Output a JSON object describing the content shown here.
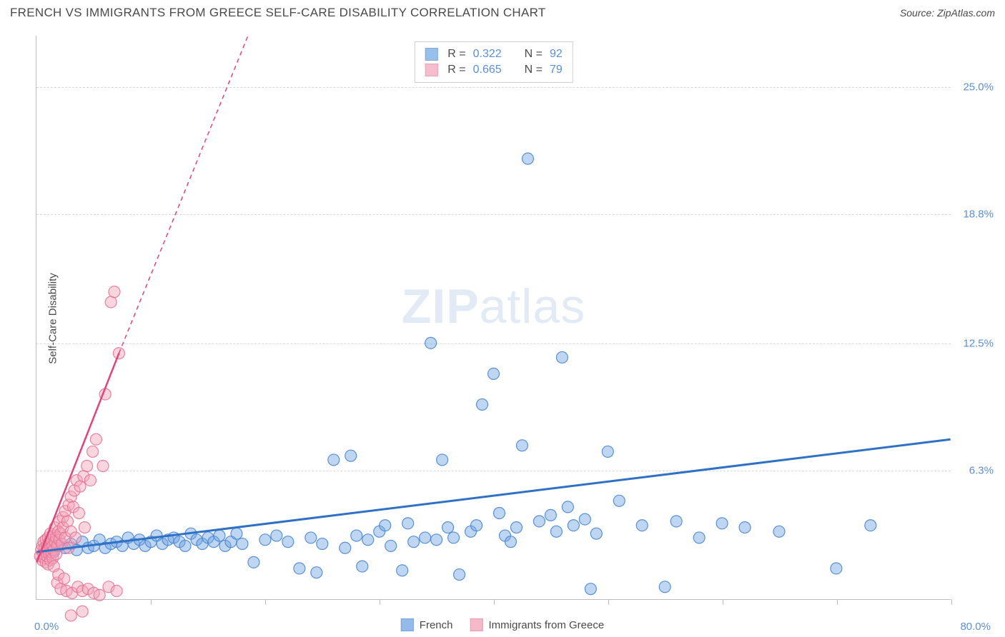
{
  "title": "FRENCH VS IMMIGRANTS FROM GREECE SELF-CARE DISABILITY CORRELATION CHART",
  "source": "Source: ZipAtlas.com",
  "watermark": {
    "zip": "ZIP",
    "atlas": "atlas"
  },
  "chart": {
    "type": "scatter",
    "background_color": "#ffffff",
    "grid_color": "#d9d9d9",
    "axis_color": "#bdbdbd",
    "label_color": "#4a4a4a",
    "tick_label_color": "#5b8fd6",
    "label_fontsize": 15,
    "title_fontsize": 17,
    "xlim": [
      0,
      80
    ],
    "ylim": [
      0,
      27.5
    ],
    "x_min_label": "0.0%",
    "x_max_label": "80.0%",
    "x_tick_positions": [
      10,
      20,
      30,
      40,
      50,
      60,
      70,
      80
    ],
    "y_gridlines": [
      6.3,
      12.5,
      18.8,
      25.0
    ],
    "y_tick_labels": [
      "6.3%",
      "12.5%",
      "18.8%",
      "25.0%"
    ],
    "y_axis_label": "Self-Care Disability",
    "marker_radius": 8,
    "marker_fill_opacity": 0.45,
    "marker_stroke_opacity": 0.9,
    "series": [
      {
        "id": "french",
        "label": "French",
        "color": "#6fa4e3",
        "stroke": "#4a86d2",
        "trend_color": "#2f71c6",
        "trend_width": 3,
        "trend_dash": "none",
        "R": "0.322",
        "N": "92",
        "trend": {
          "x1": 0,
          "y1": 2.3,
          "x2": 80,
          "y2": 7.8
        },
        "points": [
          [
            1,
            2.4
          ],
          [
            1.5,
            2.3
          ],
          [
            2,
            2.6
          ],
          [
            2.5,
            2.5
          ],
          [
            3,
            2.7
          ],
          [
            3.5,
            2.4
          ],
          [
            4,
            2.8
          ],
          [
            4.5,
            2.5
          ],
          [
            5,
            2.6
          ],
          [
            5.5,
            2.9
          ],
          [
            6,
            2.5
          ],
          [
            6.5,
            2.7
          ],
          [
            7,
            2.8
          ],
          [
            7.5,
            2.6
          ],
          [
            8,
            3.0
          ],
          [
            8.5,
            2.7
          ],
          [
            9,
            2.9
          ],
          [
            9.5,
            2.6
          ],
          [
            10,
            2.8
          ],
          [
            10.5,
            3.1
          ],
          [
            11,
            2.7
          ],
          [
            11.5,
            2.9
          ],
          [
            12,
            3.0
          ],
          [
            12.5,
            2.8
          ],
          [
            13,
            2.6
          ],
          [
            13.5,
            3.2
          ],
          [
            14,
            2.9
          ],
          [
            14.5,
            2.7
          ],
          [
            15,
            3.0
          ],
          [
            15.5,
            2.8
          ],
          [
            16,
            3.1
          ],
          [
            16.5,
            2.6
          ],
          [
            17,
            2.8
          ],
          [
            17.5,
            3.2
          ],
          [
            18,
            2.7
          ],
          [
            19,
            1.8
          ],
          [
            20,
            2.9
          ],
          [
            21,
            3.1
          ],
          [
            22,
            2.8
          ],
          [
            23,
            1.5
          ],
          [
            24,
            3.0
          ],
          [
            24.5,
            1.3
          ],
          [
            25,
            2.7
          ],
          [
            26,
            6.8
          ],
          [
            27,
            2.5
          ],
          [
            27.5,
            7.0
          ],
          [
            28,
            3.1
          ],
          [
            28.5,
            1.6
          ],
          [
            29,
            2.9
          ],
          [
            30,
            3.3
          ],
          [
            30.5,
            3.6
          ],
          [
            31,
            2.6
          ],
          [
            32,
            1.4
          ],
          [
            32.5,
            3.7
          ],
          [
            33,
            2.8
          ],
          [
            34,
            3.0
          ],
          [
            34.5,
            12.5
          ],
          [
            35,
            2.9
          ],
          [
            35.5,
            6.8
          ],
          [
            36,
            3.5
          ],
          [
            36.5,
            3.0
          ],
          [
            37,
            1.2
          ],
          [
            38,
            3.3
          ],
          [
            38.5,
            3.6
          ],
          [
            39,
            9.5
          ],
          [
            40,
            11.0
          ],
          [
            40.5,
            4.2
          ],
          [
            41,
            3.1
          ],
          [
            41.5,
            2.8
          ],
          [
            42,
            3.5
          ],
          [
            42.5,
            7.5
          ],
          [
            43,
            21.5
          ],
          [
            44,
            3.8
          ],
          [
            45,
            4.1
          ],
          [
            45.5,
            3.3
          ],
          [
            46,
            11.8
          ],
          [
            46.5,
            4.5
          ],
          [
            47,
            3.6
          ],
          [
            48,
            3.9
          ],
          [
            48.5,
            0.5
          ],
          [
            49,
            3.2
          ],
          [
            50,
            7.2
          ],
          [
            51,
            4.8
          ],
          [
            53,
            3.6
          ],
          [
            55,
            0.6
          ],
          [
            56,
            3.8
          ],
          [
            58,
            3.0
          ],
          [
            60,
            3.7
          ],
          [
            62,
            3.5
          ],
          [
            65,
            3.3
          ],
          [
            70,
            1.5
          ],
          [
            73,
            3.6
          ]
        ]
      },
      {
        "id": "greece",
        "label": "Immigrants from Greece",
        "color": "#f2a2b8",
        "stroke": "#e77598",
        "trend_color": "#e3447a",
        "trend_width": 2.5,
        "trend_dash": "none",
        "trend_dash_ext": "6 5",
        "R": "0.665",
        "N": "79",
        "trend": {
          "x1": 0,
          "y1": 1.8,
          "x2": 7.2,
          "y2": 12.0
        },
        "trend_ext": {
          "x1": 7.2,
          "y1": 12.0,
          "x2": 18.5,
          "y2": 27.5
        },
        "points": [
          [
            0.3,
            2.1
          ],
          [
            0.4,
            2.4
          ],
          [
            0.5,
            1.9
          ],
          [
            0.5,
            2.6
          ],
          [
            0.6,
            2.2
          ],
          [
            0.6,
            2.8
          ],
          [
            0.7,
            2.0
          ],
          [
            0.7,
            2.5
          ],
          [
            0.8,
            1.8
          ],
          [
            0.8,
            2.3
          ],
          [
            0.8,
            2.9
          ],
          [
            0.9,
            2.1
          ],
          [
            0.9,
            2.6
          ],
          [
            1.0,
            1.7
          ],
          [
            1.0,
            2.4
          ],
          [
            1.0,
            3.0
          ],
          [
            1.1,
            2.2
          ],
          [
            1.1,
            2.8
          ],
          [
            1.2,
            1.9
          ],
          [
            1.2,
            2.5
          ],
          [
            1.2,
            3.2
          ],
          [
            1.3,
            2.3
          ],
          [
            1.3,
            2.9
          ],
          [
            1.4,
            2.0
          ],
          [
            1.4,
            2.6
          ],
          [
            1.5,
            1.6
          ],
          [
            1.5,
            2.4
          ],
          [
            1.5,
            3.1
          ],
          [
            1.6,
            2.8
          ],
          [
            1.6,
            3.5
          ],
          [
            1.7,
            2.2
          ],
          [
            1.7,
            3.0
          ],
          [
            1.8,
            2.6
          ],
          [
            1.8,
            0.8
          ],
          [
            1.9,
            3.3
          ],
          [
            1.9,
            1.2
          ],
          [
            2.0,
            2.9
          ],
          [
            2.0,
            3.8
          ],
          [
            2.1,
            3.2
          ],
          [
            2.1,
            0.5
          ],
          [
            2.2,
            2.7
          ],
          [
            2.3,
            4.0
          ],
          [
            2.3,
            3.5
          ],
          [
            2.4,
            1.0
          ],
          [
            2.5,
            4.3
          ],
          [
            2.5,
            3.0
          ],
          [
            2.6,
            0.4
          ],
          [
            2.7,
            3.8
          ],
          [
            2.8,
            4.6
          ],
          [
            2.8,
            2.5
          ],
          [
            3.0,
            5.0
          ],
          [
            3.0,
            3.3
          ],
          [
            3.1,
            0.3
          ],
          [
            3.2,
            4.5
          ],
          [
            3.3,
            5.3
          ],
          [
            3.4,
            3.0
          ],
          [
            3.5,
            5.8
          ],
          [
            3.6,
            0.6
          ],
          [
            3.7,
            4.2
          ],
          [
            3.8,
            5.5
          ],
          [
            4.0,
            0.4
          ],
          [
            4.1,
            6.0
          ],
          [
            4.2,
            3.5
          ],
          [
            4.4,
            6.5
          ],
          [
            4.5,
            0.5
          ],
          [
            4.7,
            5.8
          ],
          [
            4.9,
            7.2
          ],
          [
            5.0,
            0.3
          ],
          [
            5.2,
            7.8
          ],
          [
            5.5,
            0.2
          ],
          [
            5.8,
            6.5
          ],
          [
            6.0,
            10.0
          ],
          [
            6.3,
            0.6
          ],
          [
            6.5,
            14.5
          ],
          [
            6.8,
            15.0
          ],
          [
            7.0,
            0.4
          ],
          [
            7.2,
            12.0
          ],
          [
            3.0,
            -0.8
          ],
          [
            4.0,
            -0.6
          ]
        ]
      }
    ]
  },
  "legend_top": {
    "r_label": "R =",
    "n_label": "N ="
  },
  "legend_bottom": {
    "items": [
      {
        "series": "french"
      },
      {
        "series": "greece"
      }
    ]
  }
}
